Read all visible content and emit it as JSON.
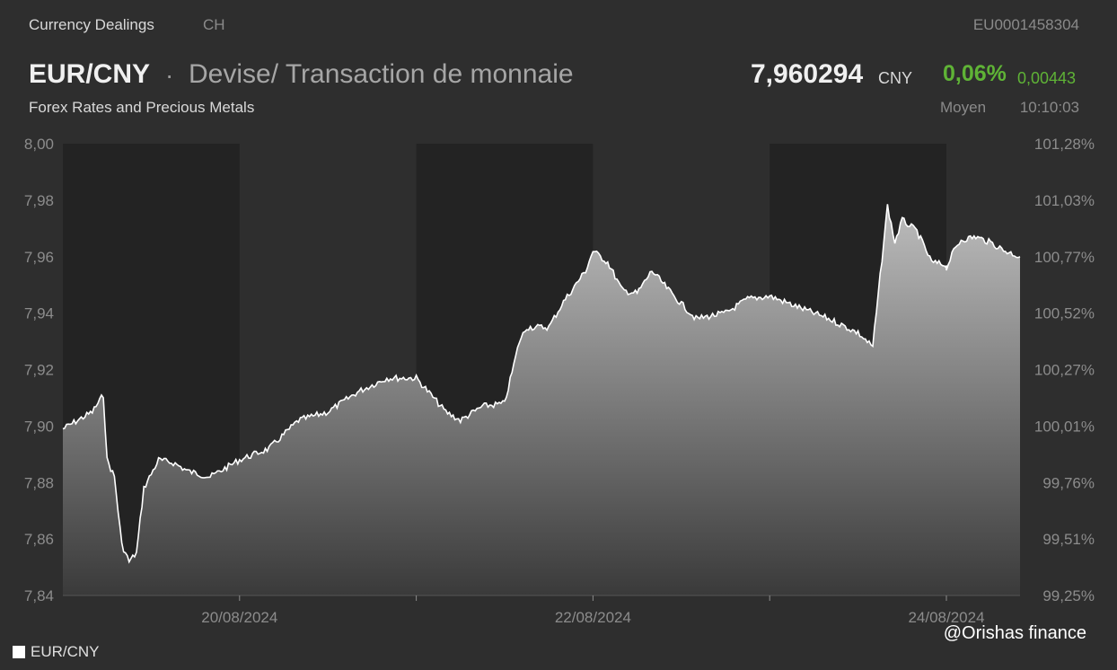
{
  "header": {
    "category": "Currency Dealings",
    "region": "CH",
    "isin": "EU0001458304",
    "pair": "EUR/CNY",
    "separator": "·",
    "description": "Devise/ Transaction de monnaie",
    "subtitle": "Forex Rates and Precious Metals",
    "price": "7,960294",
    "currency": "CNY",
    "change_pct": "0,06%",
    "change_abs": "0,00443",
    "price_type": "Moyen",
    "time": "10:10:03"
  },
  "colors": {
    "background": "#2e2e2e",
    "night_band": "#232323",
    "line": "#ffffff",
    "positive": "#5fb336"
  },
  "watermark": "@Orishas finance",
  "chart_data": {
    "type": "area",
    "title": "",
    "series": [
      {
        "name": "EUR/CNY",
        "x": [
          "2024-08-19 00:00",
          "2024-08-19 04:00",
          "2024-08-19 05:30",
          "2024-08-19 06:00",
          "2024-08-19 07:00",
          "2024-08-19 08:00",
          "2024-08-19 09:00",
          "2024-08-19 10:00",
          "2024-08-19 11:00",
          "2024-08-19 12:00",
          "2024-08-19 13:00",
          "2024-08-19 15:00",
          "2024-08-19 17:00",
          "2024-08-19 20:00",
          "2024-08-20 00:00",
          "2024-08-20 04:00",
          "2024-08-20 08:00",
          "2024-08-20 12:00",
          "2024-08-20 16:00",
          "2024-08-20 20:00",
          "2024-08-21 00:00",
          "2024-08-21 04:00",
          "2024-08-21 06:00",
          "2024-08-21 09:00",
          "2024-08-21 12:00",
          "2024-08-21 14:00",
          "2024-08-21 15:00",
          "2024-08-21 18:00",
          "2024-08-21 20:00",
          "2024-08-21 23:00",
          "2024-08-22 00:00",
          "2024-08-22 02:00",
          "2024-08-22 04:00",
          "2024-08-22 06:00",
          "2024-08-22 08:00",
          "2024-08-22 11:00",
          "2024-08-22 14:00",
          "2024-08-22 18:00",
          "2024-08-22 21:00",
          "2024-08-23 00:00",
          "2024-08-23 04:00",
          "2024-08-23 08:00",
          "2024-08-23 12:00",
          "2024-08-23 14:00",
          "2024-08-23 16:00",
          "2024-08-23 17:00",
          "2024-08-23 18:00",
          "2024-08-23 20:00",
          "2024-08-23 22:00",
          "2024-08-23 23:59",
          "2024-08-24 00:00",
          "2024-08-24 01:00",
          "2024-08-24 02:00",
          "2024-08-24 04:00",
          "2024-08-24 06:00",
          "2024-08-24 08:00",
          "2024-08-24 10:00"
        ],
        "values": [
          7.899,
          7.905,
          7.911,
          7.888,
          7.882,
          7.858,
          7.852,
          7.855,
          7.878,
          7.883,
          7.888,
          7.887,
          7.884,
          7.882,
          7.888,
          7.892,
          7.902,
          7.905,
          7.912,
          7.917,
          7.917,
          7.905,
          7.902,
          7.907,
          7.908,
          7.93,
          7.935,
          7.935,
          7.944,
          7.955,
          7.962,
          7.958,
          7.948,
          7.947,
          7.955,
          7.946,
          7.938,
          7.94,
          7.945,
          7.946,
          7.942,
          7.938,
          7.933,
          7.928,
          7.978,
          7.965,
          7.973,
          7.969,
          7.958,
          7.957,
          7.956,
          7.962,
          7.966,
          7.967,
          7.965,
          7.962,
          7.96
        ]
      }
    ],
    "x_ticks": [
      "20/08/2024",
      "22/08/2024",
      "24/08/2024"
    ],
    "y_left_ticks": [
      "8,00",
      "7,98",
      "7,96",
      "7,94",
      "7,92",
      "7,90",
      "7,88",
      "7,86",
      "7,84"
    ],
    "y_right_ticks": [
      "101,28%",
      "101,03%",
      "100,77%",
      "100,52%",
      "100,27%",
      "100,01%",
      "99,76%",
      "99,51%",
      "99,25%"
    ],
    "y_range": [
      7.84,
      8.0
    ],
    "x_range": [
      "2024-08-19 00:00",
      "2024-08-24 10:00"
    ],
    "grid": false,
    "legend": "bottom-left"
  }
}
